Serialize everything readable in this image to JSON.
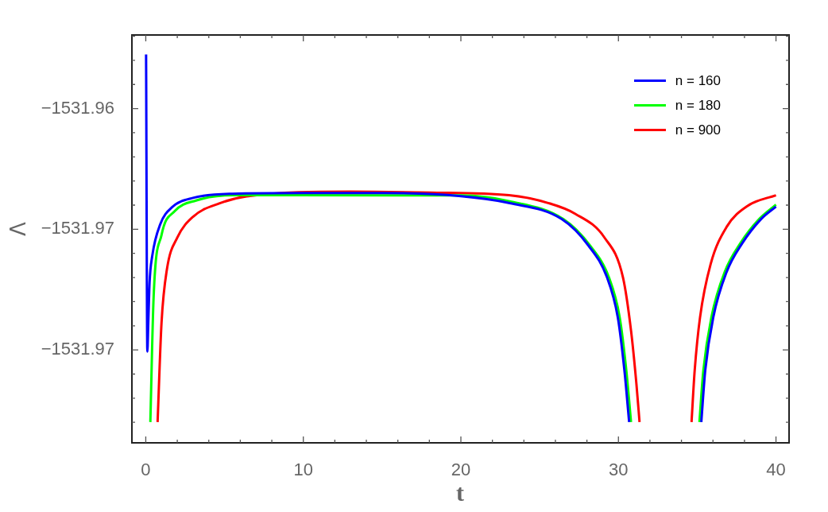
{
  "chart_data": {
    "type": "line",
    "xlabel": "t",
    "ylabel": "Λ",
    "legend": "top right",
    "marker": "none",
    "xlim": [
      -0.88,
      40.83
    ],
    "ylim": [
      -1531.97385,
      -1531.95695
    ],
    "xticks": [
      0,
      {
        "value": 2,
        "label": null
      },
      {
        "value": 4,
        "label": null
      },
      {
        "value": 6,
        "label": null
      },
      {
        "value": 8,
        "label": null
      },
      10,
      {
        "value": 12,
        "label": null
      },
      {
        "value": 14,
        "label": null
      },
      {
        "value": 16,
        "label": null
      },
      {
        "value": 18,
        "label": null
      },
      20,
      {
        "value": 22,
        "label": null
      },
      {
        "value": 24,
        "label": null
      },
      {
        "value": 26,
        "label": null
      },
      {
        "value": 28,
        "label": null
      },
      30,
      {
        "value": 32,
        "label": null
      },
      {
        "value": 34,
        "label": null
      },
      {
        "value": 36,
        "label": null
      },
      {
        "value": 38,
        "label": null
      },
      40
    ],
    "yticks": [
      {
        "value": -1531.973,
        "label": null
      },
      {
        "value": -1531.972,
        "label": null
      },
      {
        "value": -1531.971,
        "label": null
      },
      {
        "value": -1531.97,
        "label": "−1531.97"
      },
      {
        "value": -1531.969,
        "label": null
      },
      {
        "value": -1531.968,
        "label": null
      },
      {
        "value": -1531.967,
        "label": null
      },
      {
        "value": -1531.966,
        "label": null
      },
      {
        "value": -1531.965,
        "label": "−1531.97"
      },
      {
        "value": -1531.964,
        "label": null
      },
      {
        "value": -1531.963,
        "label": null
      },
      {
        "value": -1531.962,
        "label": null
      },
      {
        "value": -1531.961,
        "label": null
      },
      {
        "value": -1531.96,
        "label": "−1531.96"
      },
      {
        "value": -1531.959,
        "label": null
      },
      {
        "value": -1531.958,
        "label": null
      },
      {
        "value": -1531.957,
        "label": null
      }
    ],
    "series": [
      {
        "name": "n = 160",
        "color": "#0000ff",
        "x": [
          0.02,
          0.1,
          0.16,
          0.24,
          0.41,
          0.92,
          1.68,
          3.0,
          5.5,
          10,
          15,
          20,
          23.1,
          26.4,
          28.1,
          29.28,
          29.96,
          30.38,
          30.68,
          33,
          35.26,
          35.51,
          36.02,
          36.86,
          37.87,
          39.05,
          40.0
        ],
        "values": [
          -1531.95776,
          -1531.97007,
          -1531.96887,
          -1531.96722,
          -1531.96611,
          -1531.96479,
          -1531.96408,
          -1531.9637,
          -1531.96353,
          -1531.9635,
          -1531.9635,
          -1531.96363,
          -1531.96392,
          -1531.96458,
          -1531.96568,
          -1531.967,
          -1531.96865,
          -1531.97085,
          -1531.97299,
          null,
          -1531.97299,
          -1531.97085,
          -1531.96865,
          -1531.96678,
          -1531.96557,
          -1531.96458,
          -1531.96406
        ]
      },
      {
        "name": "n = 180",
        "color": "#00ff00",
        "x": [
          0.29,
          0.5,
          1.0,
          1.84,
          3.19,
          5.55,
          20,
          23.1,
          26.5,
          28.2,
          29.4,
          30.08,
          30.5,
          30.8,
          33,
          35.14,
          35.39,
          35.9,
          36.74,
          37.75,
          38.93,
          40.0
        ],
        "values": [
          -1531.97299,
          -1531.96777,
          -1531.96524,
          -1531.96425,
          -1531.96381,
          -1531.96359,
          -1531.9636,
          -1531.96384,
          -1531.96458,
          -1531.96568,
          -1531.967,
          -1531.96865,
          -1531.97085,
          -1531.97299,
          null,
          -1531.97299,
          -1531.97085,
          -1531.96865,
          -1531.96678,
          -1531.96557,
          -1531.96458,
          -1531.96398
        ]
      },
      {
        "name": "n = 900",
        "color": "#ff0000",
        "x": [
          0.75,
          1.0,
          1.34,
          2.0,
          3.02,
          4.7,
          6.4,
          13,
          18,
          23.06,
          25.58,
          27.26,
          29.12,
          30.29,
          30.8,
          31.14,
          31.34,
          33,
          34.64,
          34.84,
          35.18,
          35.85,
          36.86,
          38.2,
          40.0
        ],
        "values": [
          -1531.97299,
          -1531.96887,
          -1531.96667,
          -1531.96535,
          -1531.96447,
          -1531.96392,
          -1531.96364,
          -1531.96344,
          -1531.96348,
          -1531.96359,
          -1531.96392,
          -1531.96436,
          -1531.96535,
          -1531.967,
          -1531.9692,
          -1531.9714,
          -1531.97299,
          null,
          -1531.97299,
          -1531.97085,
          -1531.96865,
          -1531.96645,
          -1531.96491,
          -1531.96403,
          -1531.96359
        ]
      }
    ]
  }
}
